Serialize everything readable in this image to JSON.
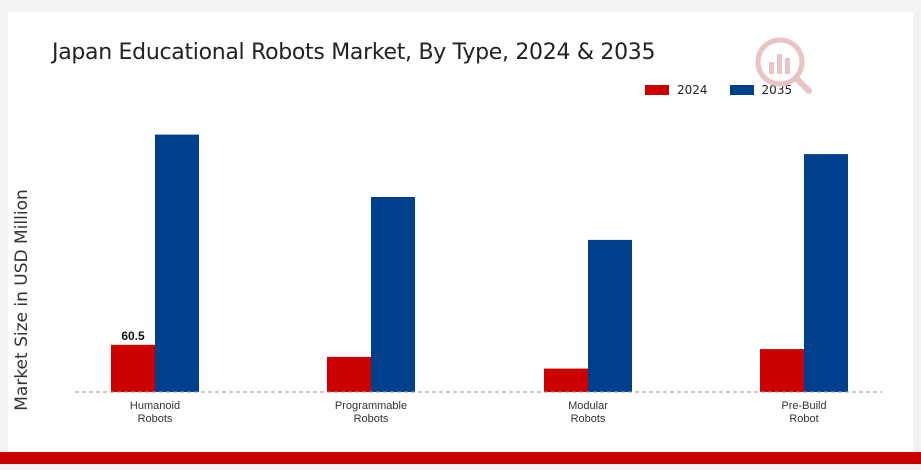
{
  "chart_data": {
    "type": "bar",
    "title": "Japan Educational Robots Market, By Type, 2024 & 2035",
    "ylabel": "Market Size in USD Million",
    "xlabel": "",
    "categories": [
      "Humanoid\nRobots",
      "Programmable\nRobots",
      "Modular\nRobots",
      "Pre-Build\nRobot"
    ],
    "series": [
      {
        "name": "2024",
        "color": "#cc0000",
        "values": [
          60.5,
          45.0,
          30.0,
          55.0
        ]
      },
      {
        "name": "2035",
        "color": "#003f8c",
        "values": [
          330.0,
          250.0,
          195.0,
          305.0
        ]
      }
    ],
    "data_labels": [
      {
        "series": 0,
        "index": 0,
        "text": "60.5"
      }
    ],
    "ylim": [
      0,
      400
    ],
    "grid": false,
    "legend": "top-right"
  },
  "colors": {
    "accent_red": "#cc0000",
    "accent_blue": "#003f8c"
  },
  "icons": {
    "logo": "market-research-logo-icon"
  }
}
